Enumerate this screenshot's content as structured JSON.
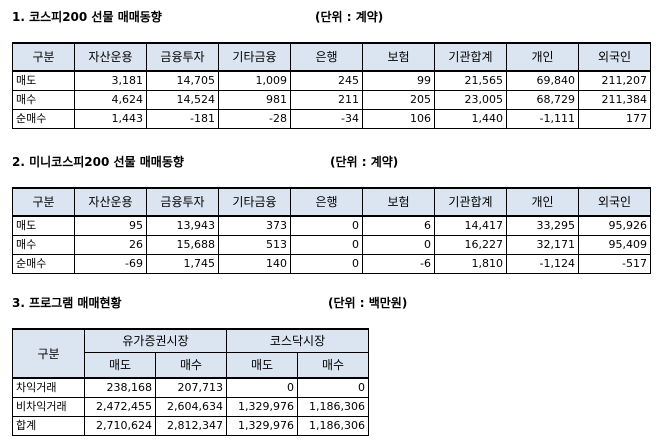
{
  "section1": {
    "title": "1. 코스피200 선물 매매동향",
    "unit": "(단위 : 계약)",
    "headers": [
      "구분",
      "자산운용",
      "금융투자",
      "기타금융",
      "은행",
      "보험",
      "기관합계",
      "개인",
      "외국인"
    ],
    "rows": [
      [
        "매도",
        "3,181",
        "14,705",
        "1,009",
        "245",
        "99",
        "21,565",
        "69,840",
        "211,207"
      ],
      [
        "매수",
        "4,624",
        "14,524",
        "981",
        "211",
        "205",
        "23,005",
        "68,729",
        "211,384"
      ],
      [
        "순매수",
        "1,443",
        "-181",
        "-28",
        "-34",
        "106",
        "1,440",
        "-1,111",
        "177"
      ]
    ]
  },
  "section2": {
    "title": "2. 미니코스피200 선물 매매동향",
    "unit": "(단위 : 계약)",
    "headers": [
      "구분",
      "자산운용",
      "금융투자",
      "기타금융",
      "은행",
      "보험",
      "기관합계",
      "개인",
      "외국인"
    ],
    "rows": [
      [
        "매도",
        "95",
        "13,943",
        "373",
        "0",
        "6",
        "14,417",
        "33,295",
        "95,926"
      ],
      [
        "매수",
        "26",
        "15,688",
        "513",
        "0",
        "0",
        "16,227",
        "32,171",
        "95,409"
      ],
      [
        "순매수",
        "-69",
        "1,745",
        "140",
        "0",
        "-6",
        "1,810",
        "-1,124",
        "-517"
      ]
    ]
  },
  "section3": {
    "title": "3. 프로그램 매매현황",
    "unit": "(단위 : 백만원)",
    "gubun": "구분",
    "groups": [
      "유가증권시장",
      "코스닥시장"
    ],
    "subheaders": [
      "매도",
      "매수",
      "매도",
      "매수"
    ],
    "rows": [
      [
        "차익거래",
        "238,168",
        "207,713",
        "0",
        "0"
      ],
      [
        "비차익거래",
        "2,472,455",
        "2,604,634",
        "1,329,976",
        "1,186,306"
      ],
      [
        "합계",
        "2,710,624",
        "2,812,347",
        "1,329,976",
        "1,186,306"
      ]
    ]
  }
}
